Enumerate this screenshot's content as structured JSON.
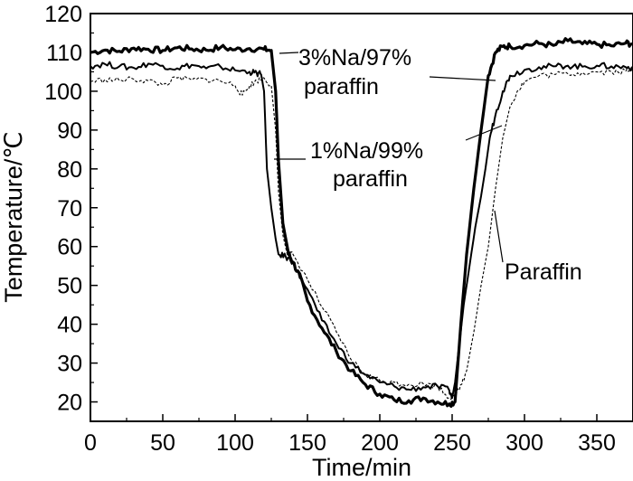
{
  "chart_data": {
    "type": "line",
    "title": "",
    "xlabel": "Time/min",
    "ylabel": "Temperature/℃",
    "xlim": [
      0,
      375
    ],
    "ylim": [
      15,
      120
    ],
    "x_ticks": [
      0,
      50,
      100,
      150,
      200,
      250,
      300,
      350
    ],
    "y_ticks": [
      20,
      30,
      40,
      50,
      60,
      70,
      80,
      90,
      100,
      110,
      120
    ],
    "grid": false,
    "series": [
      {
        "name": "3%Na/97% paraffin",
        "style": "thick-solid",
        "x": [
          0,
          10,
          20,
          30,
          40,
          50,
          60,
          70,
          80,
          90,
          100,
          110,
          120,
          125,
          128,
          130,
          133,
          137,
          140,
          145,
          150,
          160,
          170,
          180,
          190,
          200,
          210,
          220,
          230,
          240,
          248,
          252,
          256,
          260,
          265,
          270,
          275,
          280,
          285,
          290,
          300,
          310,
          320,
          330,
          340,
          350,
          360,
          370,
          375
        ],
        "y": [
          110,
          110.6,
          110.3,
          111.1,
          110.8,
          110.5,
          111.2,
          110.9,
          110.6,
          111.3,
          110.7,
          111.0,
          110.8,
          110.5,
          100,
          82,
          66,
          58,
          56,
          52,
          46,
          39,
          33,
          28,
          24.5,
          22,
          20.5,
          20.3,
          21,
          20,
          19.5,
          20,
          40,
          58,
          75,
          90,
          104,
          110,
          111.5,
          111.6,
          111.8,
          112.3,
          111.8,
          113,
          112.2,
          112.1,
          111.7,
          112.4,
          112.2
        ]
      },
      {
        "name": "1%Na/99% paraffin",
        "style": "medium-solid",
        "x": [
          0,
          10,
          20,
          30,
          40,
          50,
          60,
          70,
          80,
          90,
          100,
          110,
          115,
          118,
          120,
          122,
          125,
          128,
          130,
          135,
          140,
          150,
          160,
          170,
          180,
          190,
          200,
          210,
          220,
          230,
          240,
          248,
          250,
          252,
          255,
          258,
          262,
          266,
          270,
          273,
          276,
          280,
          285,
          290,
          300,
          310,
          320,
          330,
          340,
          350,
          360,
          370,
          375
        ],
        "y": [
          106.5,
          107,
          106.4,
          106,
          107.1,
          106.6,
          105.9,
          106.8,
          105.9,
          106.3,
          105.4,
          105,
          104.6,
          104.3,
          100,
          80,
          70,
          62,
          58,
          57.4,
          56,
          49,
          41,
          35,
          30,
          27,
          25,
          24,
          23.2,
          23.8,
          24,
          23,
          21,
          25,
          35,
          45,
          55,
          65,
          73,
          80,
          88,
          94,
          100,
          104,
          105.5,
          106.2,
          106.4,
          106.6,
          106.3,
          106.6,
          106.4,
          106.2,
          106
        ]
      },
      {
        "name": "Paraffin",
        "style": "thin-dashed",
        "x": [
          0,
          10,
          20,
          30,
          40,
          50,
          60,
          70,
          80,
          90,
          100,
          105,
          110,
          115,
          120,
          125,
          128,
          130,
          133,
          136,
          140,
          150,
          160,
          170,
          180,
          190,
          200,
          210,
          220,
          230,
          240,
          248,
          255,
          260,
          265,
          270,
          275,
          280,
          285,
          290,
          295,
          300,
          310,
          320,
          330,
          340,
          350,
          360,
          370,
          375
        ],
        "y": [
          102.5,
          103,
          102.8,
          103.1,
          102.7,
          101.6,
          103.4,
          102.9,
          103.1,
          102.6,
          101.5,
          99,
          101.4,
          102.7,
          103.4,
          101.5,
          90,
          74,
          63,
          58,
          58,
          51.5,
          44.5,
          38,
          31,
          27,
          25.5,
          25,
          24.5,
          24.7,
          24,
          21,
          23,
          28,
          38,
          50,
          60,
          75,
          88,
          96,
          100,
          102.5,
          104,
          104.3,
          104.5,
          104.8,
          105,
          105,
          105.2,
          105.1
        ]
      }
    ],
    "annotations": [
      {
        "text": "3%Na/97%",
        "x": 260,
        "y": 112
      },
      {
        "text": "paraffin",
        "x": 260,
        "y": 106
      },
      {
        "text": "1%Na/99%",
        "x": 263,
        "y": 88
      },
      {
        "text": "paraffin",
        "x": 263,
        "y": 80
      },
      {
        "text": "Paraffin",
        "x": 327,
        "y": 53
      }
    ]
  }
}
